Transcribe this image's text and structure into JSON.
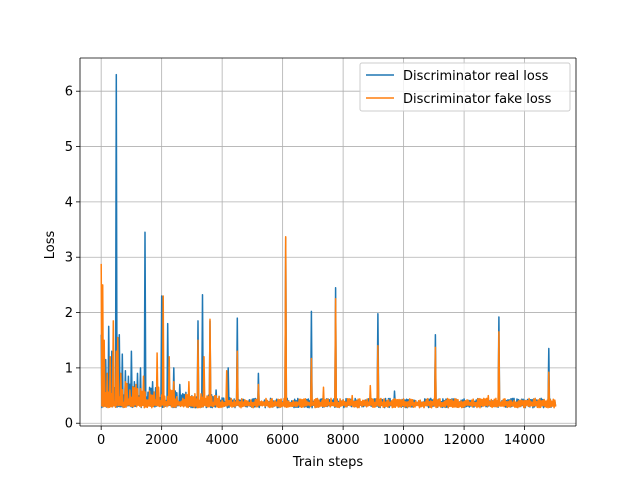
{
  "chart_data": {
    "type": "line",
    "title": "",
    "xlabel": "Train steps",
    "ylabel": "Loss",
    "xlim": [
      -700,
      15700
    ],
    "ylim": [
      -0.05,
      6.6
    ],
    "xticks": [
      0,
      2000,
      4000,
      6000,
      8000,
      10000,
      12000,
      14000
    ],
    "xtick_labels": [
      "0",
      "2000",
      "4000",
      "6000",
      "8000",
      "10000",
      "12000",
      "14000"
    ],
    "yticks": [
      0,
      1,
      2,
      3,
      4,
      5,
      6
    ],
    "ytick_labels": [
      "0",
      "1",
      "2",
      "3",
      "4",
      "5",
      "6"
    ],
    "grid": true,
    "legend_position": "top-right",
    "baseline": 0.35,
    "x_max": 15000,
    "series": [
      {
        "name": "Discriminator real loss",
        "color": "#1f77b4",
        "spikes": [
          [
            0,
            1.6
          ],
          [
            60,
            1.1
          ],
          [
            150,
            1.15
          ],
          [
            250,
            1.75
          ],
          [
            330,
            1.3
          ],
          [
            420,
            0.9
          ],
          [
            500,
            6.3
          ],
          [
            600,
            1.6
          ],
          [
            700,
            1.25
          ],
          [
            800,
            0.95
          ],
          [
            900,
            0.85
          ],
          [
            1000,
            1.3
          ],
          [
            1100,
            0.75
          ],
          [
            1200,
            0.9
          ],
          [
            1300,
            1.0
          ],
          [
            1450,
            3.45
          ],
          [
            1700,
            0.75
          ],
          [
            2000,
            2.3
          ],
          [
            2200,
            1.8
          ],
          [
            2400,
            1.0
          ],
          [
            2600,
            0.7
          ],
          [
            3200,
            1.85
          ],
          [
            3350,
            2.32
          ],
          [
            3600,
            1.85
          ],
          [
            3800,
            0.6
          ],
          [
            4200,
            1.0
          ],
          [
            4500,
            1.9
          ],
          [
            5200,
            0.9
          ],
          [
            6100,
            3.35
          ],
          [
            6950,
            2.02
          ],
          [
            7750,
            2.45
          ],
          [
            9150,
            1.98
          ],
          [
            9700,
            0.58
          ],
          [
            11050,
            1.6
          ],
          [
            13150,
            1.92
          ],
          [
            14800,
            1.35
          ]
        ]
      },
      {
        "name": "Discriminator fake loss",
        "color": "#ff7f0e",
        "spikes": [
          [
            0,
            2.88
          ],
          [
            40,
            2.5
          ],
          [
            100,
            1.5
          ],
          [
            200,
            0.9
          ],
          [
            300,
            1.2
          ],
          [
            380,
            1.85
          ],
          [
            480,
            1.3
          ],
          [
            560,
            1.55
          ],
          [
            650,
            0.9
          ],
          [
            800,
            0.75
          ],
          [
            950,
            0.6
          ],
          [
            1150,
            0.7
          ],
          [
            1400,
            0.85
          ],
          [
            1850,
            1.27
          ],
          [
            2050,
            2.3
          ],
          [
            2250,
            1.2
          ],
          [
            2400,
            0.75
          ],
          [
            2900,
            0.75
          ],
          [
            3200,
            1.5
          ],
          [
            3400,
            1.2
          ],
          [
            3600,
            1.88
          ],
          [
            4150,
            0.95
          ],
          [
            4500,
            1.3
          ],
          [
            5200,
            0.7
          ],
          [
            6100,
            3.37
          ],
          [
            6950,
            1.17
          ],
          [
            7350,
            0.65
          ],
          [
            7750,
            2.25
          ],
          [
            8300,
            0.5
          ],
          [
            8900,
            0.68
          ],
          [
            9150,
            1.4
          ],
          [
            11050,
            1.37
          ],
          [
            12800,
            0.5
          ],
          [
            13150,
            1.65
          ],
          [
            14800,
            0.92
          ]
        ]
      }
    ]
  }
}
